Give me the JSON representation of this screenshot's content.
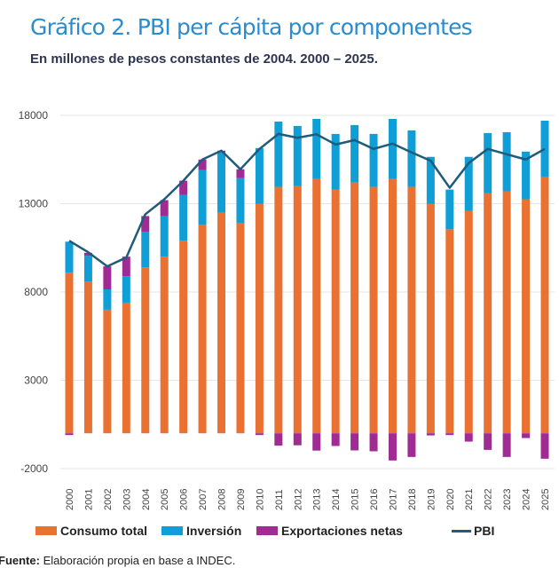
{
  "chart_data": {
    "type": "bar",
    "stacked": true,
    "title": "Gráfico 2. PBI per cápita por componentes",
    "subtitle": "En millones de pesos constantes de 2004. 2000 – 2025.",
    "xlabel": "",
    "ylabel": "",
    "ylim": [
      -2000,
      18000
    ],
    "yticks": [
      "-2000",
      "3000",
      "8000",
      "13000",
      "18000"
    ],
    "ytick_values": [
      -2000,
      3000,
      8000,
      13000,
      18000
    ],
    "grid": true,
    "legend_position": "bottom",
    "categories": [
      "2000",
      "2001",
      "2002",
      "2003",
      "2004",
      "2005",
      "2006",
      "2007",
      "2008",
      "2009",
      "2010",
      "2011",
      "2012",
      "2013",
      "2014",
      "2015",
      "2016",
      "2017",
      "2018",
      "2019",
      "2020",
      "2021",
      "2022",
      "2023",
      "2024",
      "2025"
    ],
    "series": [
      {
        "name": "Consumo total",
        "kind": "bar",
        "color": "#e97132",
        "values": [
          9100,
          8600,
          7000,
          7400,
          9400,
          10000,
          10900,
          11800,
          12500,
          11900,
          13000,
          13950,
          14000,
          14400,
          13800,
          14200,
          13950,
          14400,
          13950,
          13000,
          11550,
          12600,
          13600,
          13700,
          13250,
          14500
        ]
      },
      {
        "name": "Inversión",
        "kind": "bar",
        "color": "#0f9ed5",
        "values": [
          1750,
          1450,
          1150,
          1500,
          2000,
          2300,
          2600,
          3100,
          3400,
          2550,
          3150,
          3700,
          3400,
          3400,
          3150,
          3250,
          3000,
          3400,
          3200,
          2650,
          2250,
          3050,
          3400,
          3350,
          2700,
          3200
        ]
      },
      {
        "name": "Exportaciones netas",
        "kind": "bar",
        "color": "#a02b93",
        "values": [
          -100,
          170,
          1300,
          1100,
          900,
          900,
          800,
          600,
          100,
          500,
          -100,
          -700,
          -680,
          -980,
          -720,
          -970,
          -1020,
          -1540,
          -1340,
          -120,
          -100,
          -470,
          -940,
          -1340,
          -270,
          -1440
        ]
      },
      {
        "name": "PBI",
        "kind": "line",
        "color": "#1f5b7a",
        "values": [
          10900,
          10250,
          9450,
          9950,
          12400,
          13250,
          14300,
          15500,
          16000,
          14950,
          16100,
          16950,
          16730,
          16930,
          16350,
          16600,
          16100,
          16400,
          15900,
          15430,
          13900,
          15300,
          16100,
          15800,
          15500,
          16100
        ]
      }
    ]
  },
  "source": {
    "label": "Fuente:",
    "text": " Elaboración propia en base a INDEC."
  }
}
